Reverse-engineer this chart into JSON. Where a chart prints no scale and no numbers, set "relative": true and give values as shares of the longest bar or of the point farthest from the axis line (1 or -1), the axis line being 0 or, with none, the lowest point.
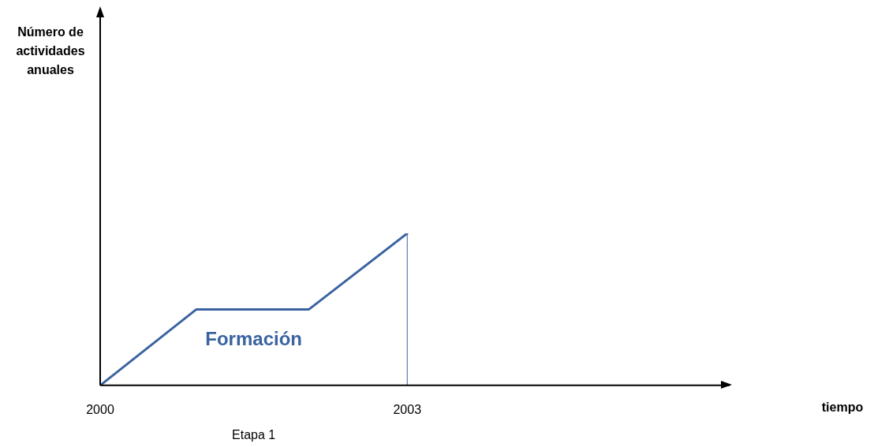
{
  "chart_data": {
    "type": "line",
    "relative": true,
    "x": [
      2000,
      2000.94,
      2002.04,
      2003
    ],
    "series": [
      {
        "name": "Formación",
        "color": "#3a63a0",
        "values": [
          0,
          0.5,
          0.5,
          1
        ]
      }
    ],
    "xlim": [
      2000,
      2006.15
    ],
    "xticks": [
      2000,
      2003
    ],
    "ref_lines": [
      {
        "axis": "x",
        "value": 2003,
        "color": "#3a63a0"
      }
    ],
    "annotations": [
      "Número de actividades anuales",
      "tiempo",
      "Etapa 1"
    ],
    "grid": false,
    "legend": false,
    "marker": "none",
    "line_style": "solid"
  }
}
